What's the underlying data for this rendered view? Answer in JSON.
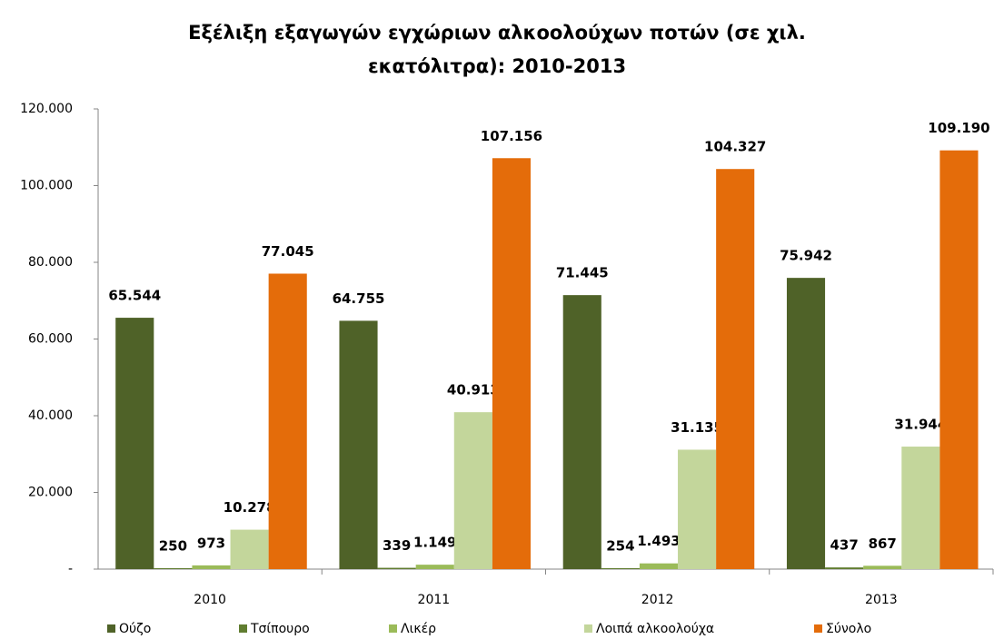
{
  "chart_data": {
    "type": "bar",
    "title": "Εξέλιξη εξαγωγών εγχώριων αλκοολούχων ποτών (σε χιλ. εκατόλιτρα): 2010-2013",
    "categories": [
      "2010",
      "2011",
      "2012",
      "2013"
    ],
    "series": [
      {
        "name": "Ούζο",
        "color": "#4f6228",
        "values": [
          65544,
          64755,
          71445,
          75942
        ],
        "value_labels": [
          "65.544",
          "64.755",
          "71.445",
          "75.942"
        ]
      },
      {
        "name": "Τσίπουρο",
        "color": "#607d30",
        "values": [
          250,
          339,
          254,
          437
        ],
        "value_labels": [
          "250",
          "339",
          "254",
          "437"
        ]
      },
      {
        "name": "Λικέρ",
        "color": "#9bbb59",
        "values": [
          973,
          1149,
          1493,
          867
        ],
        "value_labels": [
          "973",
          "1.149",
          "1.493",
          "867"
        ]
      },
      {
        "name": "Λοιπά αλκοολούχα",
        "color": "#c3d69b",
        "values": [
          10278,
          40913,
          31135,
          31944
        ],
        "value_labels": [
          "10.278",
          "40.913",
          "31.135",
          "31.944"
        ]
      },
      {
        "name": "Σύνολο",
        "color": "#e46c0a",
        "values": [
          77045,
          107156,
          104327,
          109190
        ],
        "value_labels": [
          "77.045",
          "107.156",
          "104.327",
          "109.190"
        ]
      }
    ],
    "ylim": [
      0,
      120000
    ],
    "yticks": [
      {
        "value": 0,
        "label": "-"
      },
      {
        "value": 20000,
        "label": "20.000"
      },
      {
        "value": 40000,
        "label": "40.000"
      },
      {
        "value": 60000,
        "label": "60.000"
      },
      {
        "value": 80000,
        "label": "80.000"
      },
      {
        "value": 100000,
        "label": "100.000"
      },
      {
        "value": 120000,
        "label": "120.000"
      }
    ],
    "legend": "bottom"
  }
}
